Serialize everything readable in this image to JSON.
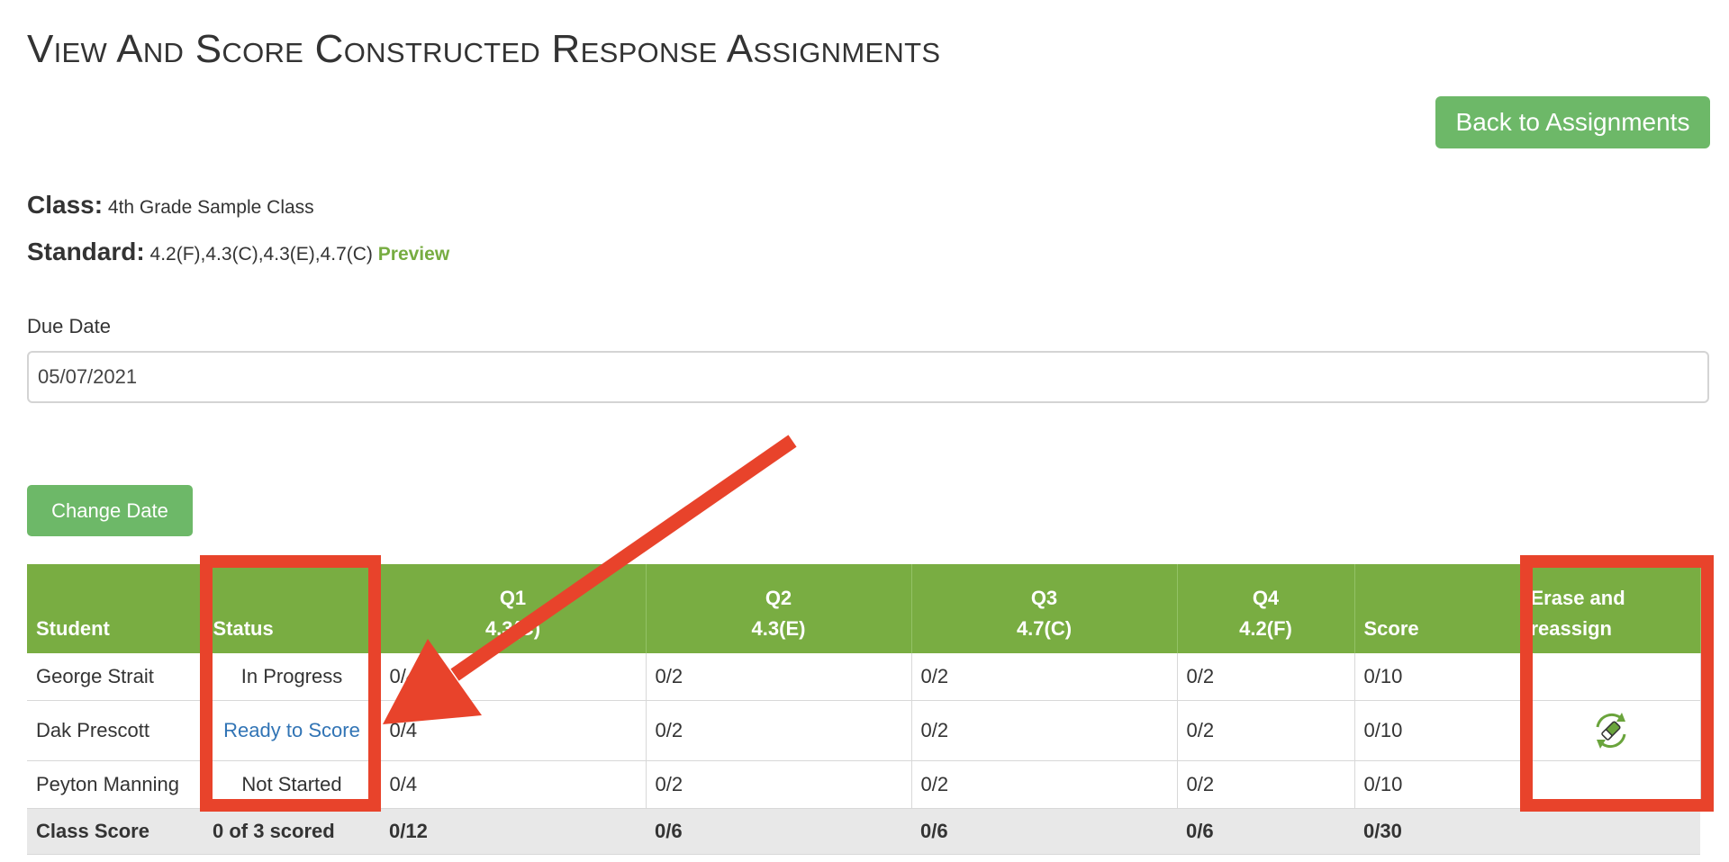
{
  "header": {
    "title": "View And Score Constructed Response Assignments",
    "back_button": "Back to Assignments"
  },
  "meta": {
    "class_label": "Class:",
    "class_value": "4th Grade Sample Class",
    "standard_label": "Standard:",
    "standard_value": "4.2(F),4.3(C),4.3(E),4.7(C)",
    "preview_link": "Preview"
  },
  "due": {
    "label": "Due Date",
    "value": "05/07/2021",
    "change_button": "Change Date"
  },
  "table": {
    "headers": {
      "student": "Student",
      "status": "Status",
      "q1_title": "Q1",
      "q1_std": "4.3(C)",
      "q2_title": "Q2",
      "q2_std": "4.3(E)",
      "q3_title": "Q3",
      "q3_std": "4.7(C)",
      "q4_title": "Q4",
      "q4_std": "4.2(F)",
      "score": "Score",
      "erase": "Erase and reassign"
    },
    "rows": [
      {
        "student": "George Strait",
        "status": "In Progress",
        "q1": "0/4",
        "q2": "0/2",
        "q3": "0/2",
        "q4": "0/2",
        "score": "0/10"
      },
      {
        "student": "Dak Prescott",
        "status": "Ready to Score",
        "q1": "0/4",
        "q2": "0/2",
        "q3": "0/2",
        "q4": "0/2",
        "score": "0/10"
      },
      {
        "student": "Peyton Manning",
        "status": "Not Started",
        "q1": "0/4",
        "q2": "0/2",
        "q3": "0/2",
        "q4": "0/2",
        "score": "0/10"
      }
    ],
    "footer": {
      "label": "Class Score",
      "scored": "0 of 3 scored",
      "q1": "0/12",
      "q2": "0/6",
      "q3": "0/6",
      "q4": "0/6",
      "score": "0/30"
    }
  },
  "icons": {
    "erase_reassign": "erase-reassign-icon"
  },
  "colors": {
    "accent_green": "#79ad42",
    "button_green": "#6db868",
    "link_blue": "#3174b5",
    "annotation_red": "#e8432b"
  }
}
